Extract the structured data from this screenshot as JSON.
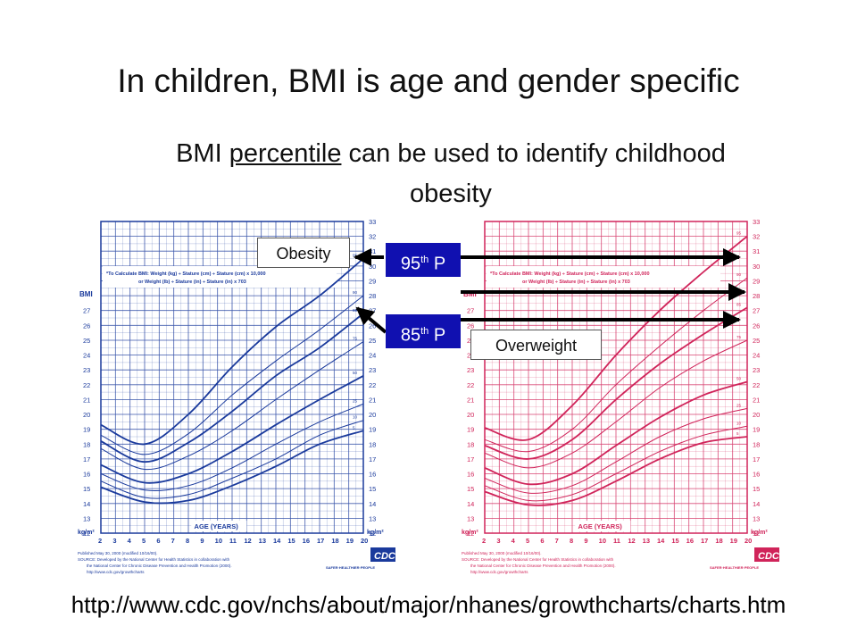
{
  "slide": {
    "title": "In children, BMI is age and gender specific",
    "subtitle_before": "BMI ",
    "subtitle_underlined": "percentile",
    "subtitle_after": " can be used to identify childhood obesity",
    "url": "http://www.cdc.gov/nchs/about/major/nhanes/growthcharts/charts.htm"
  },
  "annotations": {
    "obesity": "Obesity",
    "overweight": "Overweight",
    "p95_num": "95",
    "p85_num": "85",
    "suffix_th": "th",
    "p_letter": " P"
  },
  "charts": {
    "bmi_label": "BMI",
    "unit_label": "kg/m²",
    "age_label": "AGE (YEARS)",
    "formula_line1": "*To Calculate BMI: Weight (kg) ÷ Stature (cm) ÷ Stature (cm) x 10,000",
    "formula_line2": "or Weight (lb) ÷ Stature (in) ÷ Stature (in) x 703",
    "footer_line1": "Published May 30, 2000 (modified 10/16/00).",
    "footer_line2": "SOURCE: Developed by the National Center for Health Statistics in collaboration with",
    "footer_line3": "the National Center for Chronic Disease Prevention and Health Promotion (2000).",
    "footer_line4": "http://www.cdc.gov/growthcharts",
    "logo_text": "CDC",
    "safer_text": "SAFER·HEALTHIER·PEOPLE",
    "y_ticks": [
      "12",
      "13",
      "14",
      "15",
      "16",
      "17",
      "18",
      "19",
      "20",
      "21",
      "22",
      "23",
      "24",
      "25",
      "26",
      "27",
      "28",
      "29",
      "30",
      "31",
      "32",
      "33"
    ],
    "x_ticks": [
      "2",
      "3",
      "4",
      "5",
      "6",
      "7",
      "8",
      "9",
      "10",
      "11",
      "12",
      "13",
      "14",
      "15",
      "16",
      "17",
      "18",
      "19",
      "20"
    ],
    "percentile_labels": [
      "95",
      "90",
      "85",
      "75",
      "50",
      "25",
      "10",
      "5"
    ],
    "colors": {
      "boys": "#1a3a9c",
      "girls": "#d0245a",
      "accent_box": "#1010b0",
      "arrow": "#000000"
    }
  },
  "chart_data": [
    {
      "type": "line",
      "name_hint": "boys",
      "x": [
        2,
        5,
        8,
        11,
        14,
        17,
        20
      ],
      "series": [
        {
          "values": [
            19.3,
            18.0,
            20.0,
            23.2,
            25.9,
            28.0,
            30.5
          ]
        },
        {
          "values": [
            18.6,
            17.3,
            18.7,
            21.3,
            23.6,
            25.7,
            28.0
          ]
        },
        {
          "values": [
            18.2,
            16.8,
            18.1,
            20.2,
            22.6,
            24.5,
            26.8
          ]
        },
        {
          "values": [
            17.7,
            16.3,
            17.2,
            18.9,
            21.0,
            23.0,
            24.9
          ]
        },
        {
          "values": [
            16.6,
            15.4,
            16.0,
            17.5,
            19.3,
            21.0,
            22.6
          ]
        },
        {
          "values": [
            16.0,
            14.9,
            15.2,
            16.4,
            18.0,
            19.5,
            20.7
          ]
        },
        {
          "values": [
            15.5,
            14.4,
            14.6,
            15.7,
            17.0,
            18.6,
            19.6
          ]
        },
        {
          "values": [
            15.1,
            14.1,
            14.2,
            15.2,
            16.5,
            18.0,
            18.9
          ]
        }
      ],
      "xlim": [
        2,
        20
      ],
      "ylim": [
        12,
        33
      ]
    },
    {
      "type": "line",
      "name_hint": "girls",
      "x": [
        2,
        5,
        8,
        11,
        14,
        17,
        20
      ],
      "series": [
        {
          "values": [
            19.1,
            18.3,
            20.6,
            24.0,
            27.0,
            29.6,
            32.0
          ]
        },
        {
          "values": [
            18.3,
            17.5,
            19.0,
            22.0,
            24.6,
            27.0,
            29.2
          ]
        },
        {
          "values": [
            17.9,
            17.0,
            18.3,
            21.0,
            23.4,
            25.4,
            27.2
          ]
        },
        {
          "values": [
            17.4,
            16.4,
            17.4,
            19.5,
            21.8,
            23.6,
            25.0
          ]
        },
        {
          "values": [
            16.4,
            15.3,
            16.0,
            17.9,
            19.8,
            21.3,
            22.2
          ]
        },
        {
          "values": [
            15.7,
            14.7,
            15.2,
            16.8,
            18.5,
            19.7,
            20.4
          ]
        },
        {
          "values": [
            15.2,
            14.2,
            14.6,
            16.0,
            17.5,
            18.6,
            19.2
          ]
        },
        {
          "values": [
            14.8,
            13.9,
            14.2,
            15.5,
            17.0,
            18.1,
            18.5
          ]
        }
      ],
      "xlim": [
        2,
        20
      ],
      "ylim": [
        12,
        33
      ]
    }
  ]
}
